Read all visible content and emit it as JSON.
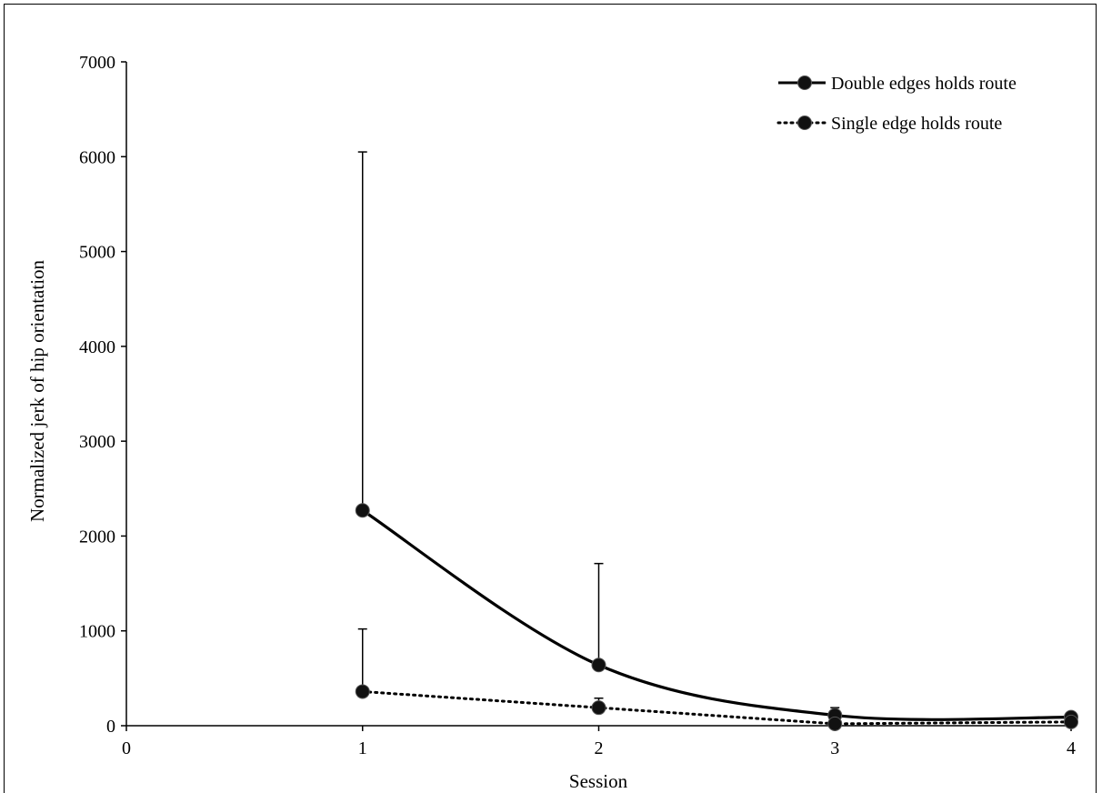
{
  "chart_data": {
    "type": "line",
    "xlabel": "Session",
    "ylabel": "Normalized jerk of hip orientation",
    "xlim": [
      0,
      4
    ],
    "ylim": [
      0,
      7000
    ],
    "x_ticks": [
      "0",
      "1",
      "2",
      "3",
      "4"
    ],
    "y_ticks": [
      "0",
      "1000",
      "2000",
      "3000",
      "4000",
      "5000",
      "6000",
      "7000"
    ],
    "grid": false,
    "legend_position": "top-right",
    "series": [
      {
        "name": "Double edges holds route",
        "style": "solid",
        "x": [
          1,
          2,
          3,
          4
        ],
        "y": [
          2270,
          640,
          110,
          90
        ],
        "error_upper": [
          6050,
          1710,
          190,
          120
        ]
      },
      {
        "name": "Single edge holds route",
        "style": "dotted",
        "x": [
          1,
          2,
          3,
          4
        ],
        "y": [
          360,
          190,
          20,
          40
        ],
        "error_upper": [
          1020,
          290,
          60,
          80
        ]
      }
    ],
    "colors": {
      "line": "#000000",
      "marker": "#111111"
    }
  }
}
